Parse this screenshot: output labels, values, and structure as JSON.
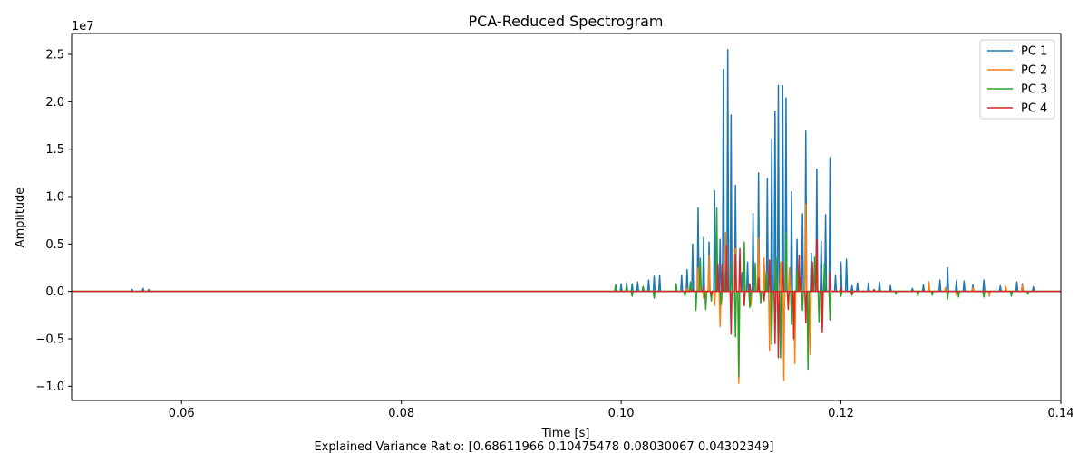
{
  "chart_data": {
    "type": "line",
    "title": "PCA-Reduced Spectrogram",
    "xlabel": "Time [s]",
    "ylabel": "Amplitude",
    "caption": "Explained Variance Ratio: [0.68611966 0.10475478 0.08030067 0.04302349]",
    "y_offset_label": "1e7",
    "xlim": [
      0.05,
      0.14
    ],
    "ylim": [
      -1.15,
      2.72
    ],
    "y_multiplier": 10000000,
    "x_ticks": [
      0.06,
      0.08,
      0.1,
      0.12,
      0.14
    ],
    "x_tick_labels": [
      "0.06",
      "0.08",
      "0.10",
      "0.12",
      "0.14"
    ],
    "y_ticks": [
      -1.0,
      -0.5,
      0.0,
      0.5,
      1.0,
      1.5,
      2.0,
      2.5
    ],
    "y_tick_labels": [
      "−1.0",
      "−0.5",
      "0.0",
      "0.5",
      "1.0",
      "1.5",
      "2.0",
      "2.5"
    ],
    "grid": false,
    "legend_position": "top-right",
    "series": [
      {
        "name": "PC 1",
        "color": "#1f77b4",
        "spikes": [
          [
            0.0555,
            0.02
          ],
          [
            0.0565,
            0.03
          ],
          [
            0.057,
            0.02
          ],
          [
            0.0995,
            0.06
          ],
          [
            0.1,
            0.08
          ],
          [
            0.1005,
            0.09
          ],
          [
            0.101,
            0.08
          ],
          [
            0.1015,
            0.1
          ],
          [
            0.102,
            0.05
          ],
          [
            0.1025,
            0.12
          ],
          [
            0.103,
            0.16
          ],
          [
            0.1035,
            0.17
          ],
          [
            0.1055,
            0.17
          ],
          [
            0.106,
            0.23
          ],
          [
            0.1065,
            0.5
          ],
          [
            0.107,
            0.88
          ],
          [
            0.1075,
            0.57
          ],
          [
            0.108,
            0.52
          ],
          [
            0.1085,
            1.06
          ],
          [
            0.109,
            0.55
          ],
          [
            0.1093,
            2.34
          ],
          [
            0.1097,
            2.55
          ],
          [
            0.11,
            1.86
          ],
          [
            0.1104,
            1.12
          ],
          [
            0.111,
            0.2
          ],
          [
            0.1115,
            0.31
          ],
          [
            0.112,
            0.82
          ],
          [
            0.1125,
            1.25
          ],
          [
            0.113,
            0.34
          ],
          [
            0.1133,
            1.19
          ],
          [
            0.1137,
            1.61
          ],
          [
            0.114,
            1.9
          ],
          [
            0.1143,
            2.17
          ],
          [
            0.1147,
            2.17
          ],
          [
            0.115,
            2.04
          ],
          [
            0.1155,
            1.05
          ],
          [
            0.116,
            0.55
          ],
          [
            0.1165,
            0.82
          ],
          [
            0.1168,
            1.69
          ],
          [
            0.1173,
            0.4
          ],
          [
            0.1178,
            1.29
          ],
          [
            0.1182,
            0.53
          ],
          [
            0.1186,
            0.81
          ],
          [
            0.119,
            1.41
          ],
          [
            0.1195,
            0.17
          ],
          [
            0.12,
            0.31
          ],
          [
            0.1205,
            0.34
          ],
          [
            0.121,
            0.06
          ],
          [
            0.1215,
            0.09
          ],
          [
            0.1225,
            0.09
          ],
          [
            0.1235,
            0.1
          ],
          [
            0.1245,
            0.06
          ],
          [
            0.1265,
            0.03
          ],
          [
            0.1275,
            0.07
          ],
          [
            0.129,
            0.12
          ],
          [
            0.1297,
            0.25
          ],
          [
            0.1305,
            0.11
          ],
          [
            0.1312,
            0.11
          ],
          [
            0.132,
            0.07
          ],
          [
            0.133,
            0.12
          ],
          [
            0.1345,
            0.06
          ],
          [
            0.136,
            0.1
          ],
          [
            0.1365,
            0.08
          ],
          [
            0.1375,
            0.05
          ]
        ]
      },
      {
        "name": "PC 2",
        "color": "#ff7f0e",
        "spikes": [
          [
            0.106,
            0.03
          ],
          [
            0.107,
            0.25
          ],
          [
            0.1075,
            -0.07
          ],
          [
            0.108,
            0.38
          ],
          [
            0.1085,
            -0.15
          ],
          [
            0.109,
            -0.37
          ],
          [
            0.1095,
            0.62
          ],
          [
            0.11,
            -0.18
          ],
          [
            0.1104,
            0.45
          ],
          [
            0.1107,
            -0.97
          ],
          [
            0.1112,
            0.22
          ],
          [
            0.1118,
            -0.15
          ],
          [
            0.1125,
            0.56
          ],
          [
            0.113,
            0.35
          ],
          [
            0.1135,
            -0.62
          ],
          [
            0.114,
            -0.4
          ],
          [
            0.1145,
            0.31
          ],
          [
            0.1148,
            -0.94
          ],
          [
            0.1153,
            0.25
          ],
          [
            0.1158,
            -0.76
          ],
          [
            0.1163,
            0.15
          ],
          [
            0.1168,
            0.92
          ],
          [
            0.1172,
            -0.67
          ],
          [
            0.1178,
            0.38
          ],
          [
            0.1183,
            -0.3
          ],
          [
            0.119,
            -0.29
          ],
          [
            0.12,
            -0.05
          ],
          [
            0.121,
            -0.03
          ],
          [
            0.128,
            0.1
          ],
          [
            0.1295,
            0.04
          ],
          [
            0.1305,
            -0.04
          ],
          [
            0.132,
            0.04
          ],
          [
            0.1335,
            -0.05
          ],
          [
            0.135,
            0.05
          ],
          [
            0.1365,
            0.07
          ]
        ]
      },
      {
        "name": "PC 3",
        "color": "#2ca02c",
        "spikes": [
          [
            0.0995,
            0.07
          ],
          [
            0.1005,
            0.06
          ],
          [
            0.101,
            -0.05
          ],
          [
            0.102,
            0.05
          ],
          [
            0.103,
            -0.07
          ],
          [
            0.105,
            0.08
          ],
          [
            0.1058,
            -0.05
          ],
          [
            0.1063,
            0.1
          ],
          [
            0.1068,
            -0.2
          ],
          [
            0.1072,
            0.35
          ],
          [
            0.1077,
            -0.19
          ],
          [
            0.1082,
            -0.1
          ],
          [
            0.1087,
            0.88
          ],
          [
            0.1091,
            -0.14
          ],
          [
            0.1095,
            0.22
          ],
          [
            0.11,
            0.3
          ],
          [
            0.1104,
            -0.48
          ],
          [
            0.1107,
            -0.9
          ],
          [
            0.1112,
            0.52
          ],
          [
            0.1117,
            -0.17
          ],
          [
            0.1122,
            0.3
          ],
          [
            0.1127,
            -0.12
          ],
          [
            0.1132,
            0.2
          ],
          [
            0.1137,
            -0.56
          ],
          [
            0.1141,
            0.35
          ],
          [
            0.1145,
            -0.7
          ],
          [
            0.115,
            0.62
          ],
          [
            0.1155,
            -0.35
          ],
          [
            0.116,
            0.22
          ],
          [
            0.1165,
            -0.2
          ],
          [
            0.117,
            -0.82
          ],
          [
            0.1176,
            0.36
          ],
          [
            0.118,
            -0.32
          ],
          [
            0.1185,
            0.3
          ],
          [
            0.119,
            -0.3
          ],
          [
            0.12,
            -0.05
          ],
          [
            0.121,
            -0.04
          ],
          [
            0.125,
            -0.03
          ],
          [
            0.127,
            -0.05
          ],
          [
            0.1283,
            -0.04
          ],
          [
            0.1297,
            -0.08
          ],
          [
            0.1307,
            -0.06
          ],
          [
            0.133,
            -0.06
          ],
          [
            0.1355,
            -0.05
          ],
          [
            0.137,
            -0.03
          ]
        ]
      },
      {
        "name": "PC 4",
        "color": "#d62728",
        "spikes": [
          [
            0.1065,
            0.02
          ],
          [
            0.1075,
            0.05
          ],
          [
            0.1082,
            -0.04
          ],
          [
            0.1088,
            0.29
          ],
          [
            0.1092,
            0.29
          ],
          [
            0.1096,
            0.48
          ],
          [
            0.11,
            -0.45
          ],
          [
            0.1104,
            0.39
          ],
          [
            0.1108,
            0.45
          ],
          [
            0.1112,
            -0.15
          ],
          [
            0.1117,
            0.08
          ],
          [
            0.1125,
            0.14
          ],
          [
            0.113,
            -0.1
          ],
          [
            0.1135,
            0.33
          ],
          [
            0.114,
            -0.55
          ],
          [
            0.1143,
            -0.7
          ],
          [
            0.1147,
            0.31
          ],
          [
            0.1152,
            -0.19
          ],
          [
            0.1157,
            -0.5
          ],
          [
            0.1162,
            0.38
          ],
          [
            0.1168,
            -0.33
          ],
          [
            0.1174,
            0.31
          ],
          [
            0.1178,
            0.55
          ],
          [
            0.1183,
            -0.43
          ],
          [
            0.119,
            0.2
          ],
          [
            0.12,
            0.04
          ],
          [
            0.121,
            -0.03
          ],
          [
            0.123,
            0.02
          ]
        ]
      }
    ]
  }
}
